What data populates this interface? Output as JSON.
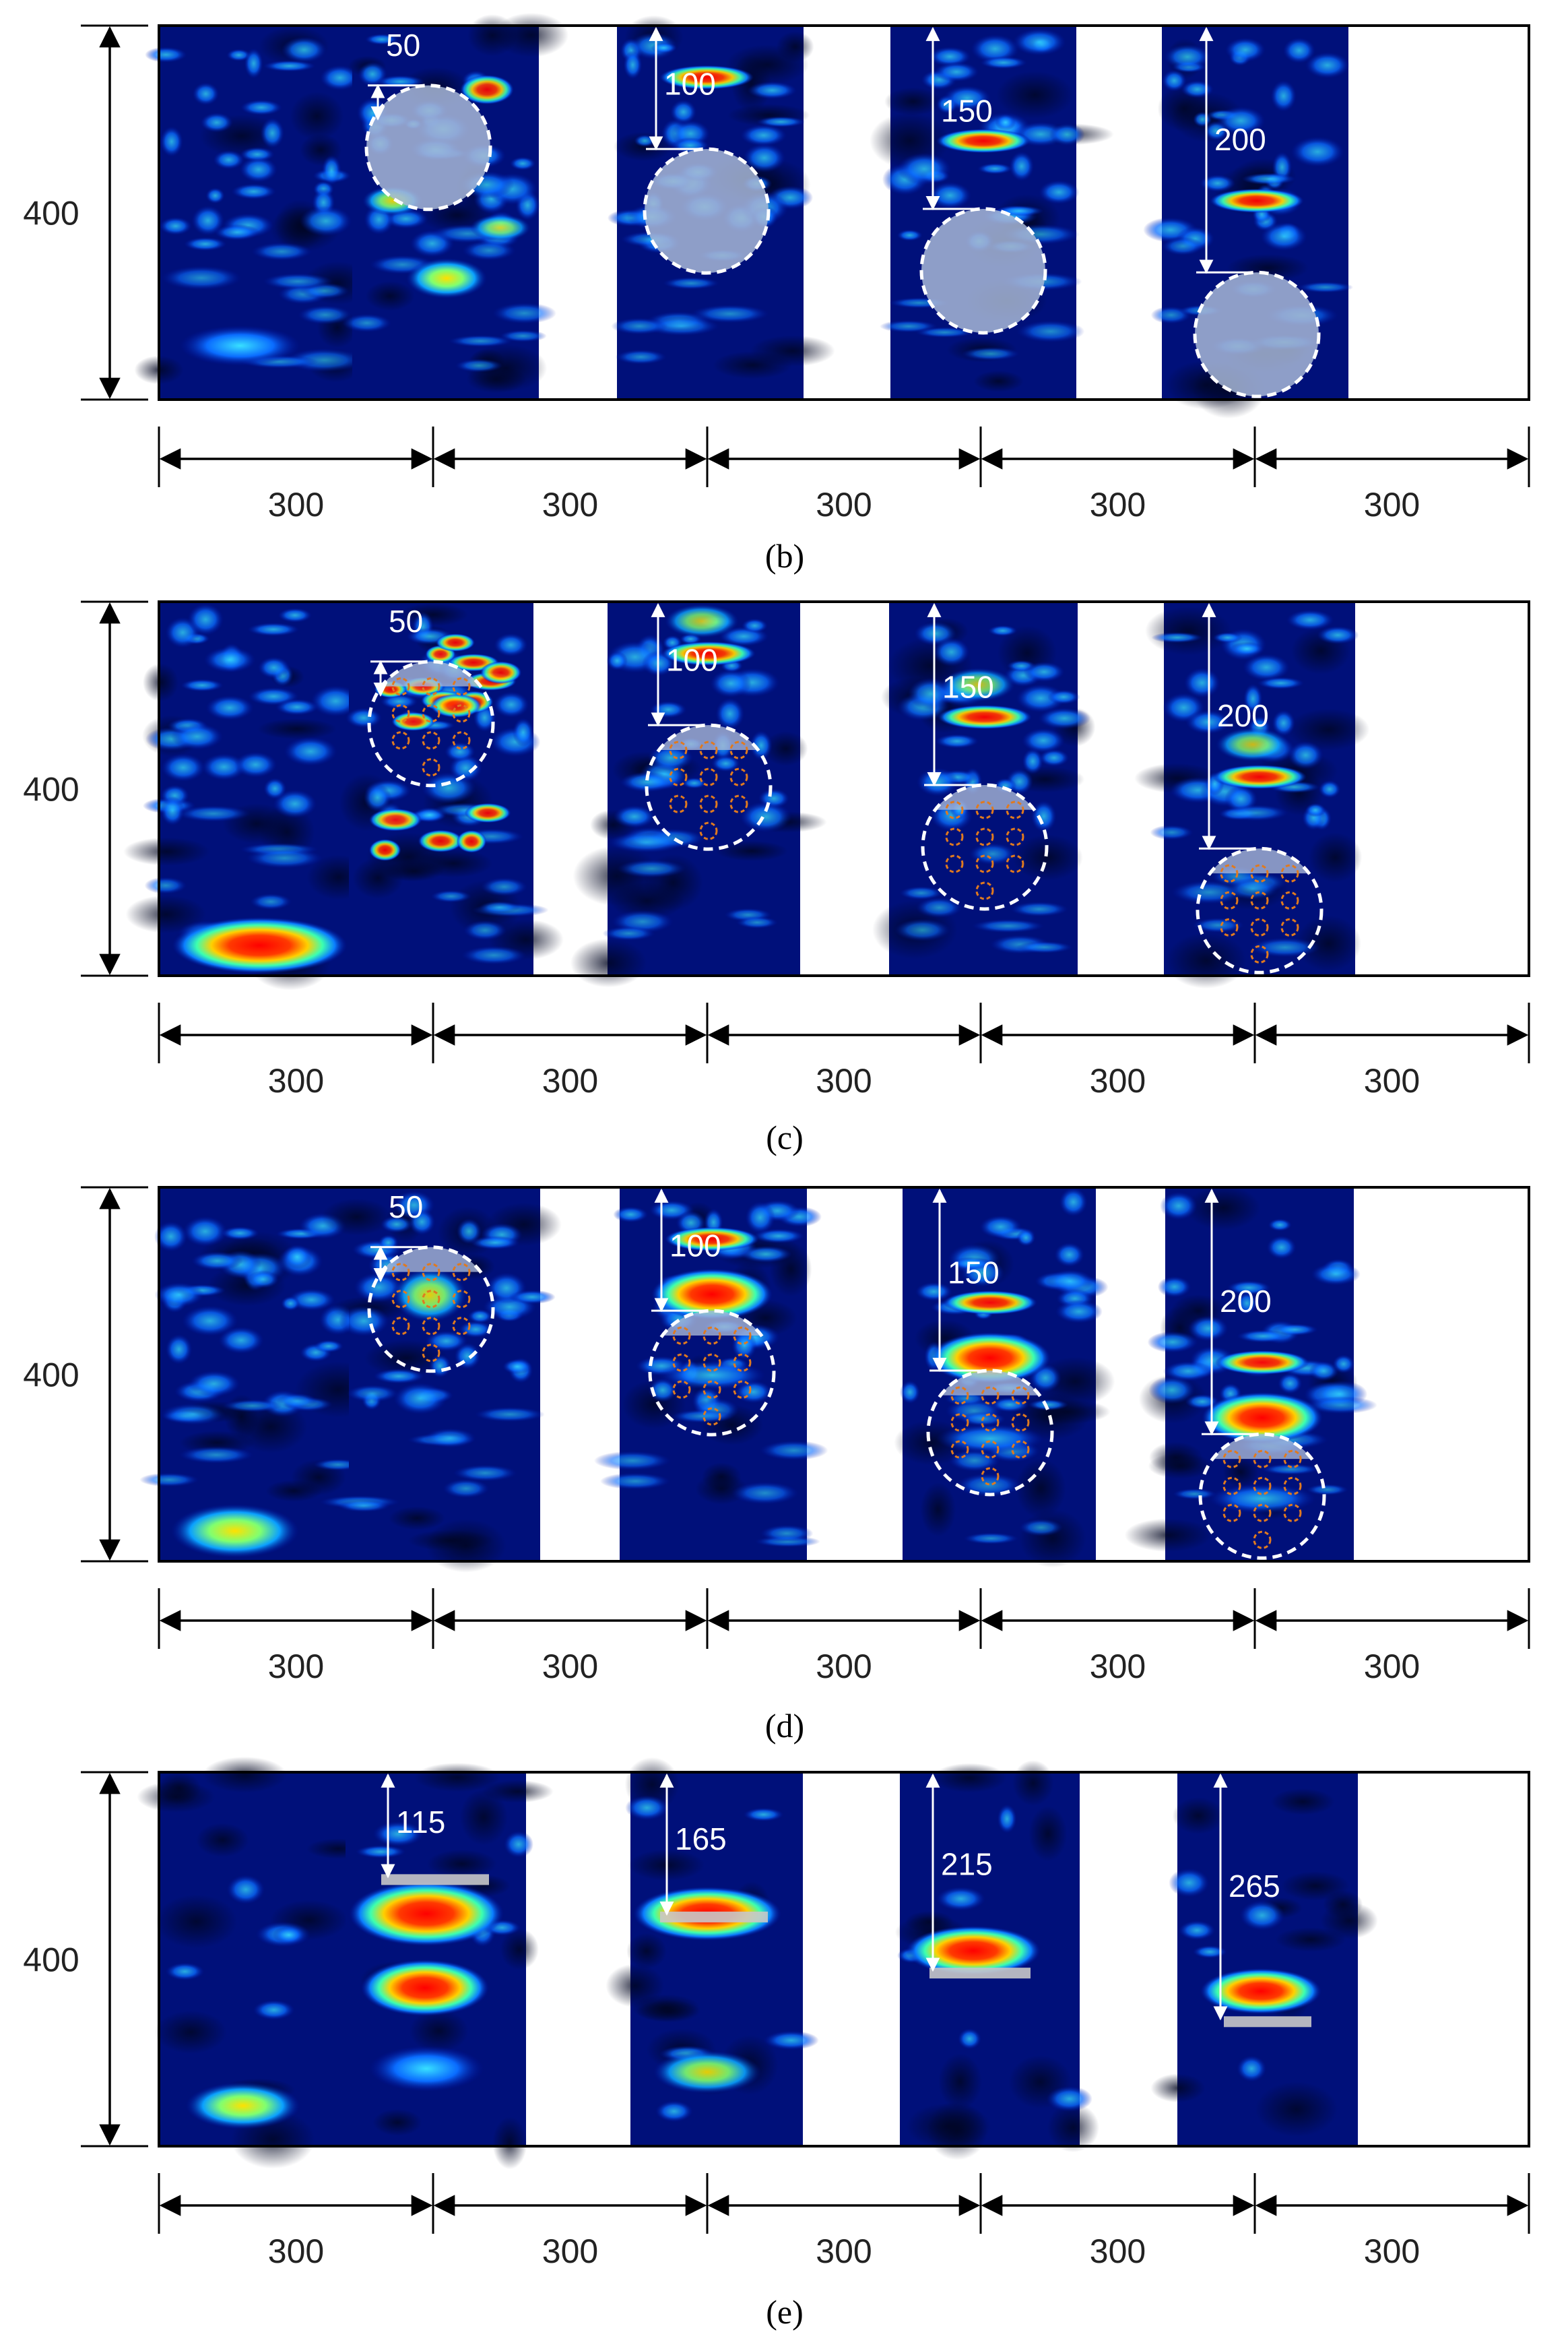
{
  "figure": {
    "panels": [
      {
        "caption_text": "(b)",
        "caption_letter": "b",
        "height_label": "400",
        "width_labels": [
          "300",
          "300",
          "300",
          "300",
          "300"
        ],
        "depth_labels": [
          "50",
          "100",
          "150",
          "200"
        ],
        "defect": "plain"
      },
      {
        "caption_text": "(c)",
        "caption_letter": "c",
        "height_label": "400",
        "width_labels": [
          "300",
          "300",
          "300",
          "300",
          "300"
        ],
        "depth_labels": [
          "50",
          "100",
          "150",
          "200"
        ],
        "defect": "rebar"
      },
      {
        "caption_text": "(d)",
        "caption_letter": "d",
        "height_label": "400",
        "width_labels": [
          "300",
          "300",
          "300",
          "300",
          "300"
        ],
        "depth_labels": [
          "50",
          "100",
          "150",
          "200"
        ],
        "defect": "rebar"
      },
      {
        "caption_text": "(e)",
        "caption_letter": "e",
        "height_label": "400",
        "width_labels": [
          "300",
          "300",
          "300",
          "300",
          "300"
        ],
        "depth_labels": [
          "115",
          "165",
          "215",
          "265"
        ],
        "defect": "none"
      }
    ]
  },
  "colors": {
    "heatmap_background": "#00107a",
    "frame": "#000000",
    "defect_fill": "#a7b7d6",
    "defect_outline": "#ffffff",
    "rebar_ring": "#e07a1f",
    "dimension_line": "#000000",
    "depth_arrow": "#ffffff"
  }
}
